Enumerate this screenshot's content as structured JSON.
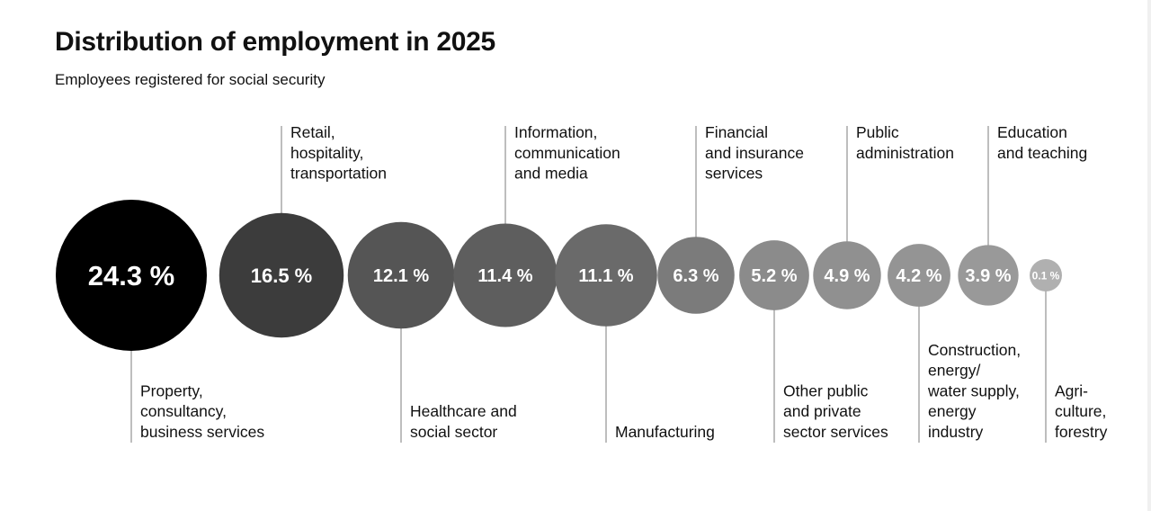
{
  "header": {
    "title": "Distribution of employment in 2025",
    "subtitle": "Employees registered for social security"
  },
  "chart_data": {
    "type": "bubble-row",
    "title": "Distribution of employment in 2025",
    "subtitle": "Employees registered for social security",
    "unit": "%",
    "series": [
      {
        "label": [
          "Property,",
          "consultancy,",
          "business services"
        ],
        "value": 24.3,
        "display": "24.3 %",
        "color": "#000000",
        "label_side": "bottom"
      },
      {
        "label": [
          "Retail,",
          "hospitality,",
          "transportation"
        ],
        "value": 16.5,
        "display": "16.5 %",
        "color": "#3c3c3c",
        "label_side": "top"
      },
      {
        "label": [
          "Healthcare and",
          "social sector"
        ],
        "value": 12.1,
        "display": "12.1 %",
        "color": "#555555",
        "label_side": "bottom"
      },
      {
        "label": [
          "Information,",
          "communication",
          "and media"
        ],
        "value": 11.4,
        "display": "11.4 %",
        "color": "#5e5e5e",
        "label_side": "top"
      },
      {
        "label": [
          "Manufacturing"
        ],
        "value": 11.1,
        "display": "11.1 %",
        "color": "#6a6a6a",
        "label_side": "bottom"
      },
      {
        "label": [
          "Financial",
          "and insurance",
          "services"
        ],
        "value": 6.3,
        "display": "6.3 %",
        "color": "#7b7b7b",
        "label_side": "top"
      },
      {
        "label": [
          "Other public",
          "and private",
          "sector services"
        ],
        "value": 5.2,
        "display": "5.2 %",
        "color": "#8b8b8b",
        "label_side": "bottom"
      },
      {
        "label": [
          "Public",
          "administration"
        ],
        "value": 4.9,
        "display": "4.9 %",
        "color": "#909090",
        "label_side": "top"
      },
      {
        "label": [
          "Construction,",
          "energy/",
          "water supply,",
          "energy",
          "industry"
        ],
        "value": 4.2,
        "display": "4.2 %",
        "color": "#949494",
        "label_side": "bottom"
      },
      {
        "label": [
          "Education",
          "and teaching"
        ],
        "value": 3.9,
        "display": "3.9 %",
        "color": "#999999",
        "label_side": "top"
      },
      {
        "label": [
          "Agri-",
          "culture,",
          "forestry"
        ],
        "value": 0.1,
        "display": "0.1 %",
        "color": "#b0b0b0",
        "label_side": "bottom"
      }
    ]
  }
}
